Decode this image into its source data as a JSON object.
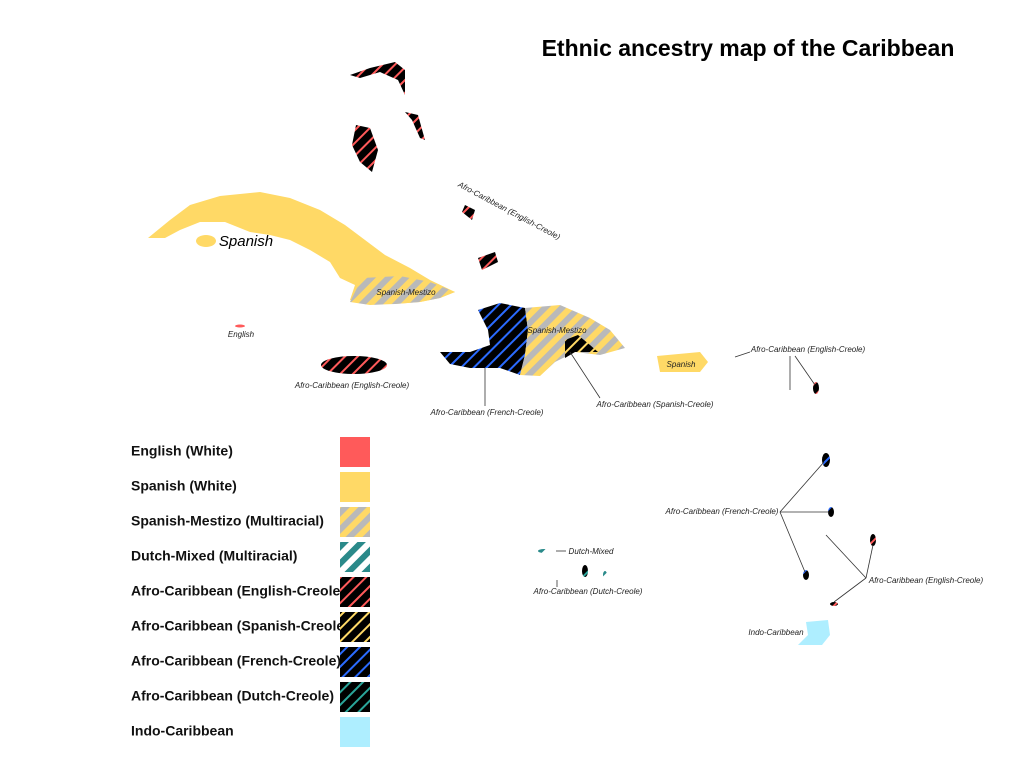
{
  "title": "Ethnic ancestry map of the Caribbean",
  "legend": [
    "English (White)",
    "Spanish (White)",
    "Spanish-Mestizo (Multiracial)",
    "Dutch-Mixed (Multiracial)",
    "Afro-Caribbean (English-Creole)",
    "Afro-Caribbean (Spanish-Creole)",
    "Afro-Caribbean (French-Creole)",
    "Afro-Caribbean (Dutch-Creole)",
    "Indo-Caribbean"
  ],
  "map_labels": [
    "Spanish",
    "Spanish-Mestizo",
    "English",
    "Afro-Caribbean (English-Creole)",
    "Afro-Caribbean (English-Creole)",
    "Spanish-Mestizo",
    "Afro-Caribbean (French-Creole)",
    "Afro-Caribbean (Spanish-Creole)",
    "Spanish",
    "Afro-Caribbean (English-Creole)",
    "Afro-Caribbean (French-Creole)",
    "Afro-Caribbean (English-Creole)",
    "Dutch-Mixed",
    "Afro-Caribbean (Dutch-Creole)",
    "Indo-Caribbean"
  ]
}
